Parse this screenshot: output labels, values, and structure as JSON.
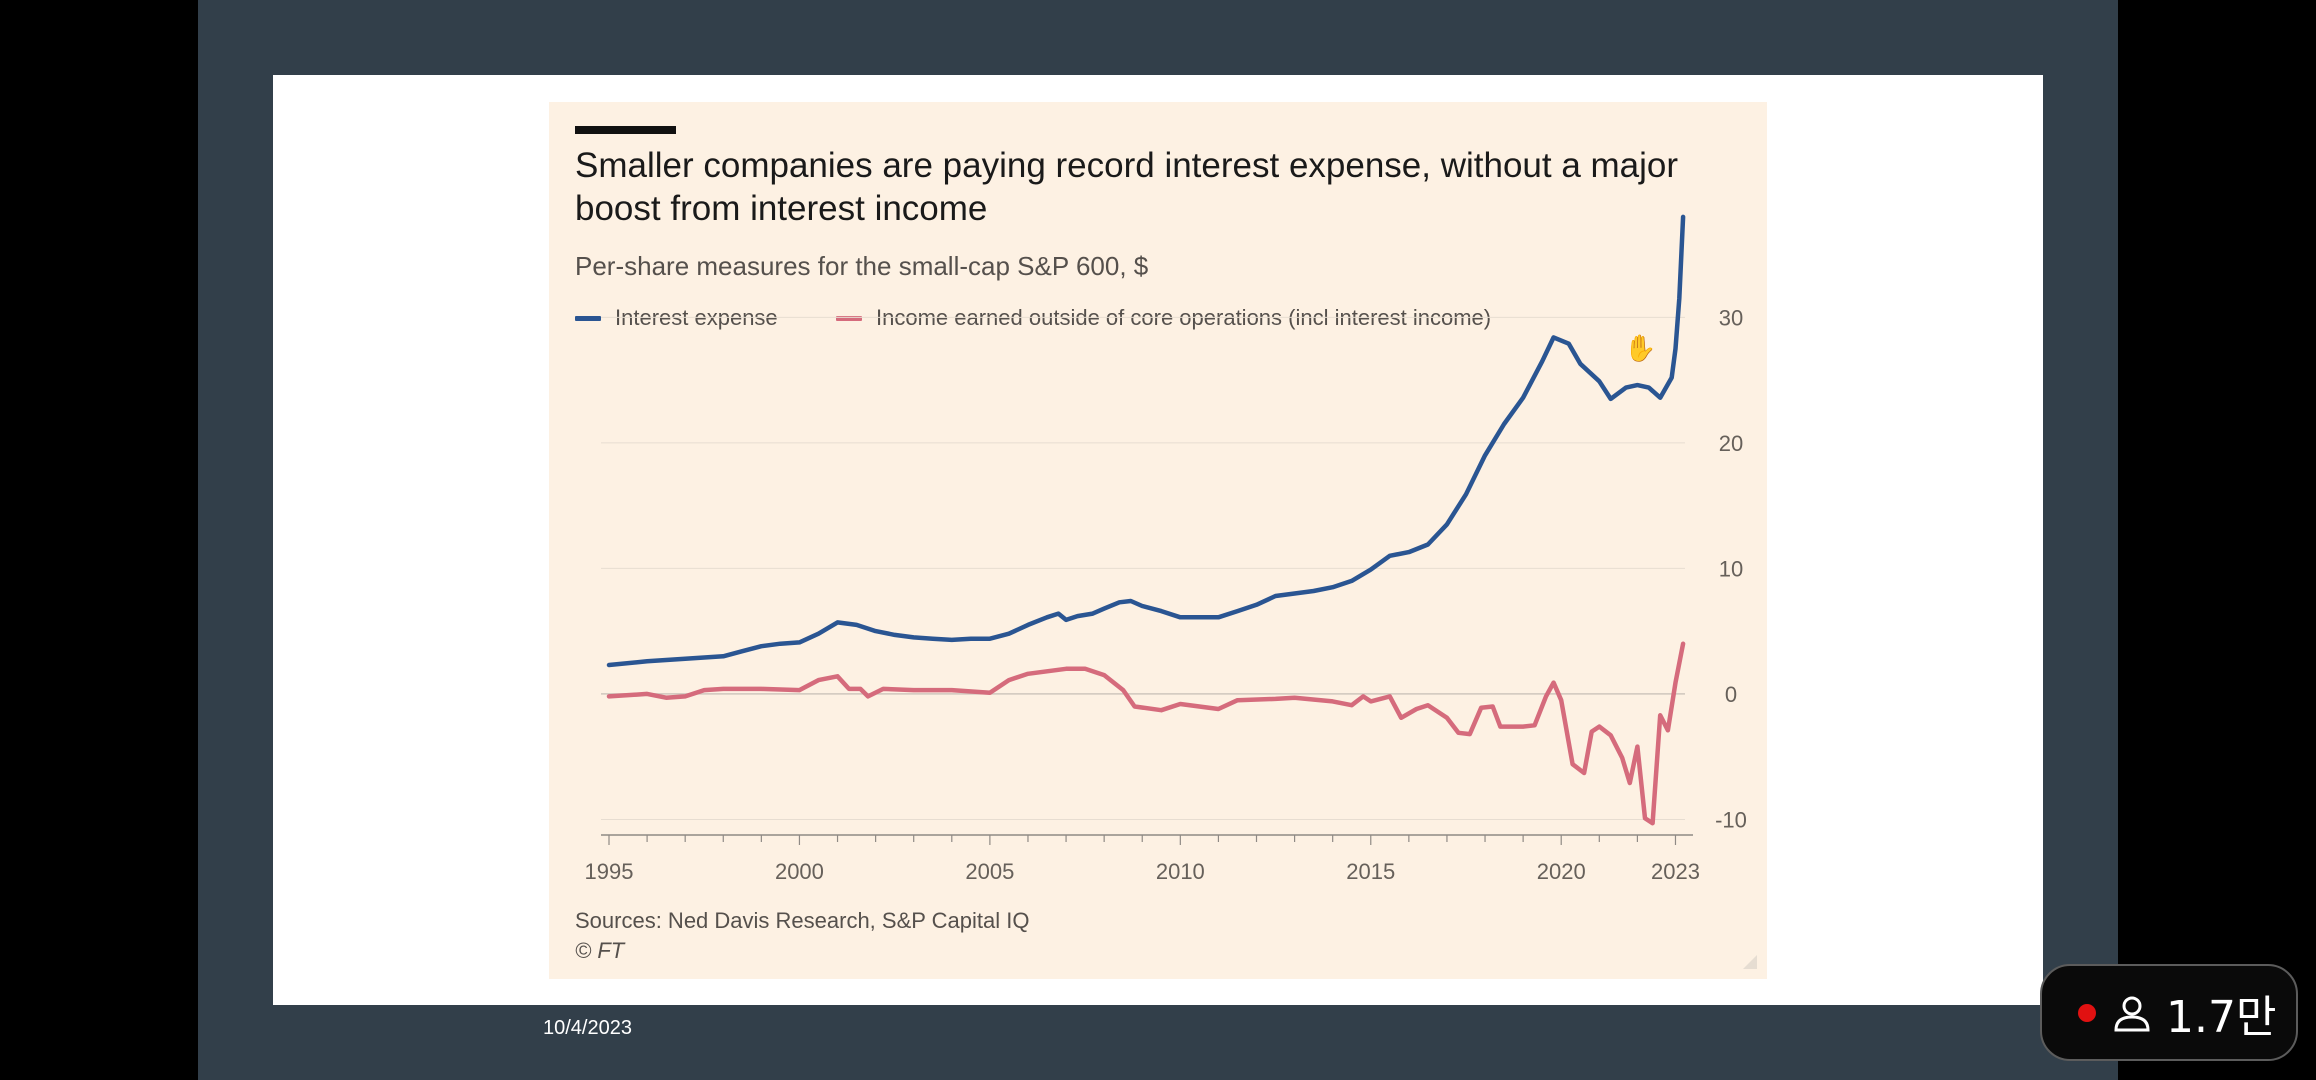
{
  "date": "10/4/2023",
  "viewers": {
    "count": "1.7만",
    "live_color": "#e11111"
  },
  "chart": {
    "title": "Smaller companies are paying record interest expense, without a major boost from interest income",
    "subtitle": "Per-share measures for the small-cap S&P 600, $",
    "sources": "Sources: Ned Davis Research, S&P Capital IQ",
    "credit": "© FT"
  },
  "chart_data": {
    "type": "line",
    "title": "Smaller companies are paying record interest expense, without a major boost from interest income",
    "subtitle": "Per-share measures for the small-cap S&P 600, $",
    "xlabel": "",
    "ylabel": "",
    "xlim": [
      1995,
      2023.25
    ],
    "ylim": [
      -11,
      36
    ],
    "x_ticks": [
      1995,
      2000,
      2005,
      2010,
      2015,
      2020,
      2023
    ],
    "y_ticks": [
      -10,
      0,
      10,
      20,
      30
    ],
    "grid": true,
    "legend_position": "top-left",
    "series": [
      {
        "name": "Interest expense",
        "color": "#2a5592",
        "points": [
          [
            1995,
            2.3
          ],
          [
            1996,
            2.6
          ],
          [
            1997,
            2.8
          ],
          [
            1998,
            3.0
          ],
          [
            1998.5,
            3.4
          ],
          [
            1999,
            3.8
          ],
          [
            1999.5,
            4.0
          ],
          [
            2000,
            4.1
          ],
          [
            2000.5,
            4.8
          ],
          [
            2001,
            5.7
          ],
          [
            2001.5,
            5.5
          ],
          [
            2002,
            5.0
          ],
          [
            2002.5,
            4.7
          ],
          [
            2003,
            4.5
          ],
          [
            2003.5,
            4.4
          ],
          [
            2004,
            4.3
          ],
          [
            2004.5,
            4.4
          ],
          [
            2005,
            4.4
          ],
          [
            2005.5,
            4.8
          ],
          [
            2006,
            5.5
          ],
          [
            2006.5,
            6.1
          ],
          [
            2006.8,
            6.4
          ],
          [
            2007,
            5.9
          ],
          [
            2007.3,
            6.2
          ],
          [
            2007.7,
            6.4
          ],
          [
            2008,
            6.8
          ],
          [
            2008.4,
            7.3
          ],
          [
            2008.7,
            7.4
          ],
          [
            2009,
            7.0
          ],
          [
            2009.5,
            6.6
          ],
          [
            2010,
            6.1
          ],
          [
            2010.5,
            6.1
          ],
          [
            2011,
            6.1
          ],
          [
            2011.5,
            6.6
          ],
          [
            2012,
            7.1
          ],
          [
            2012.5,
            7.8
          ],
          [
            2013,
            8.0
          ],
          [
            2013.5,
            8.2
          ],
          [
            2014,
            8.5
          ],
          [
            2014.5,
            9.0
          ],
          [
            2015,
            9.9
          ],
          [
            2015.5,
            11.0
          ],
          [
            2016,
            11.3
          ],
          [
            2016.5,
            11.9
          ],
          [
            2017,
            13.5
          ],
          [
            2017.5,
            15.9
          ],
          [
            2018,
            19.0
          ],
          [
            2018.5,
            21.5
          ],
          [
            2019,
            23.6
          ],
          [
            2019.5,
            26.5
          ],
          [
            2019.8,
            28.4
          ],
          [
            2020.2,
            27.9
          ],
          [
            2020.5,
            26.3
          ],
          [
            2021,
            24.9
          ],
          [
            2021.3,
            23.5
          ],
          [
            2021.7,
            24.4
          ],
          [
            2022,
            24.6
          ],
          [
            2022.3,
            24.4
          ],
          [
            2022.6,
            23.6
          ],
          [
            2022.9,
            25.2
          ],
          [
            2023.0,
            27.5
          ],
          [
            2023.1,
            31.5
          ],
          [
            2023.2,
            38.0
          ]
        ]
      },
      {
        "name": "Income earned outside of core operations (incl interest income)",
        "color": "#d56b7c",
        "points": [
          [
            1995,
            -0.2
          ],
          [
            1996,
            0.0
          ],
          [
            1996.5,
            -0.3
          ],
          [
            1997,
            -0.2
          ],
          [
            1997.5,
            0.3
          ],
          [
            1998,
            0.4
          ],
          [
            1999,
            0.4
          ],
          [
            2000,
            0.3
          ],
          [
            2000.5,
            1.1
          ],
          [
            2001,
            1.4
          ],
          [
            2001.3,
            0.4
          ],
          [
            2001.6,
            0.4
          ],
          [
            2001.8,
            -0.2
          ],
          [
            2002.2,
            0.4
          ],
          [
            2003,
            0.3
          ],
          [
            2004,
            0.3
          ],
          [
            2005,
            0.1
          ],
          [
            2005.5,
            1.1
          ],
          [
            2006,
            1.6
          ],
          [
            2006.5,
            1.8
          ],
          [
            2007,
            2.0
          ],
          [
            2007.5,
            2.0
          ],
          [
            2008,
            1.5
          ],
          [
            2008.5,
            0.3
          ],
          [
            2008.8,
            -1.0
          ],
          [
            2009.5,
            -1.3
          ],
          [
            2010,
            -0.8
          ],
          [
            2011,
            -1.2
          ],
          [
            2011.5,
            -0.5
          ],
          [
            2012.5,
            -0.4
          ],
          [
            2013,
            -0.3
          ],
          [
            2014,
            -0.6
          ],
          [
            2014.5,
            -0.9
          ],
          [
            2014.8,
            -0.2
          ],
          [
            2015,
            -0.6
          ],
          [
            2015.5,
            -0.2
          ],
          [
            2015.8,
            -1.9
          ],
          [
            2016.2,
            -1.2
          ],
          [
            2016.5,
            -0.9
          ],
          [
            2017,
            -1.9
          ],
          [
            2017.3,
            -3.1
          ],
          [
            2017.6,
            -3.2
          ],
          [
            2017.9,
            -1.1
          ],
          [
            2018.2,
            -1.0
          ],
          [
            2018.4,
            -2.6
          ],
          [
            2019,
            -2.6
          ],
          [
            2019.3,
            -2.5
          ],
          [
            2019.6,
            -0.2
          ],
          [
            2019.8,
            0.9
          ],
          [
            2020,
            -0.5
          ],
          [
            2020.3,
            -5.6
          ],
          [
            2020.6,
            -6.3
          ],
          [
            2020.8,
            -3.0
          ],
          [
            2021,
            -2.6
          ],
          [
            2021.3,
            -3.3
          ],
          [
            2021.6,
            -5.1
          ],
          [
            2021.8,
            -7.1
          ],
          [
            2022,
            -4.2
          ],
          [
            2022.2,
            -9.9
          ],
          [
            2022.4,
            -10.3
          ],
          [
            2022.6,
            -1.7
          ],
          [
            2022.8,
            -2.9
          ],
          [
            2023,
            0.9
          ],
          [
            2023.2,
            4.0
          ]
        ]
      }
    ]
  }
}
